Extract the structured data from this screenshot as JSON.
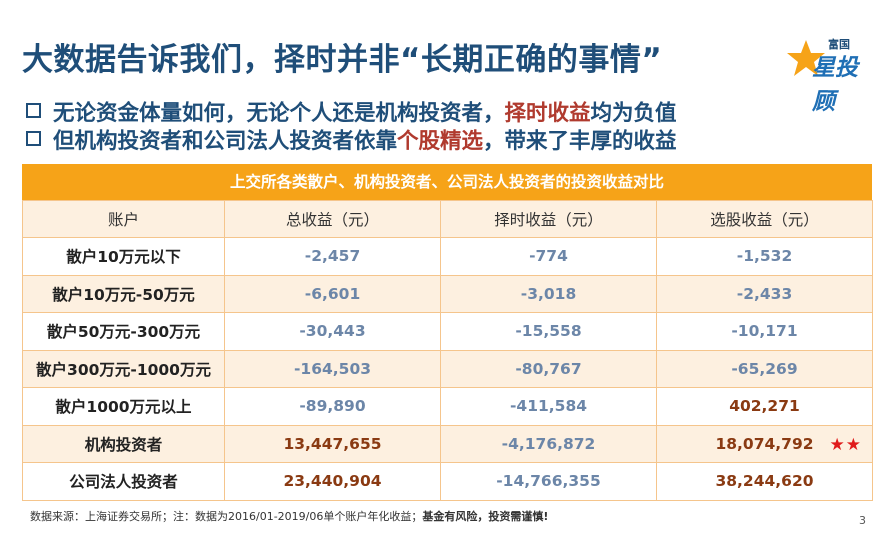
{
  "title": "大数据告诉我们，择时并非“长期正确的事情”",
  "logo": {
    "top": "富国",
    "main": "星投顾"
  },
  "bullets": [
    {
      "pre": "无论资金体量如何，无论个人还是机构投资者，",
      "hl": "择时收益",
      "post": "均为负值"
    },
    {
      "pre": "但机构投资者和公司法人投资者依靠",
      "hl": "个股精选",
      "post": "，带来了丰厚的收益"
    }
  ],
  "table": {
    "title": "上交所各类散户、机构投资者、公司法人投资者的投资收益对比",
    "headers": [
      "账户",
      "总收益（元）",
      "择时收益（元）",
      "选股收益（元）"
    ],
    "rows": [
      {
        "account": "散户10万元以下",
        "total": "-2,457",
        "timing": "-774",
        "selection": "-1,532"
      },
      {
        "account": "散户10万元-50万元",
        "total": "-6,601",
        "timing": "-3,018",
        "selection": "-2,433"
      },
      {
        "account": "散户50万元-300万元",
        "total": "-30,443",
        "timing": "-15,558",
        "selection": "-10,171"
      },
      {
        "account": "散户300万元-1000万元",
        "total": "-164,503",
        "timing": "-80,767",
        "selection": "-65,269"
      },
      {
        "account": "散户1000万元以上",
        "total": "-89,890",
        "timing": "-411,584",
        "selection": "402,271"
      },
      {
        "account": "机构投资者",
        "total": "13,447,655",
        "timing": "-4,176,872",
        "selection": "18,074,792",
        "stars": "★★"
      },
      {
        "account": "公司法人投资者",
        "total": "23,440,904",
        "timing": "-14,766,355",
        "selection": "38,244,620"
      }
    ]
  },
  "footnote": {
    "source": "数据来源：上海证券交易所；注：数据为2016/01-2019/06单个账户年化收益；",
    "warning": "基金有风险，投资需谨慎!"
  },
  "page_number": "3",
  "colors": {
    "title": "#1f4e79",
    "highlight": "#b03a2e",
    "table_header": "#f6a318",
    "row_alt": "#fdf0e0",
    "negative": "#6c86a8",
    "positive": "#8a3a12",
    "stars": "#e01b1b"
  }
}
